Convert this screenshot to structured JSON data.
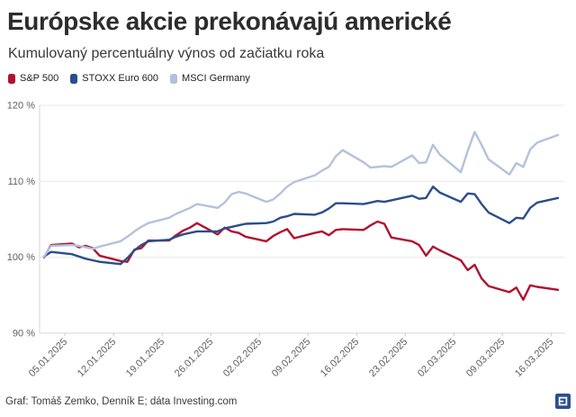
{
  "header": {
    "title": "Európske akcie prekonávajú americké",
    "subtitle": "Kumulovaný percentuálny výnos od začiatku roka"
  },
  "footer": {
    "credit": "Graf: Tomáš Zemko, Denník E; dáta Investing.com",
    "logo": {
      "name": "dennik-e-logo",
      "color": "#2d4e8e"
    }
  },
  "colors": {
    "grid": "#e9e9e9",
    "axis": "#d6d6d6",
    "tick": "#c9c9c9",
    "axis_text": "#5f5f5f"
  },
  "chart_data": {
    "type": "line",
    "title": "Európske akcie prekonávajú americké",
    "subtitle": "Kumulovaný percentuálny výnos od začiatku roka",
    "ylim": [
      90,
      120
    ],
    "y_ticks": [
      90,
      100,
      110,
      120
    ],
    "y_tick_labels": [
      "90 %",
      "100 %",
      "110 %",
      "120 %"
    ],
    "x_tick_labels": [
      "05.01.2025",
      "12.01.2025",
      "19.01.2025",
      "26.01.2025",
      "02.02.2025",
      "09.02.2025",
      "16.02.2025",
      "23.02.2025",
      "02.03.2025",
      "09.03.2025",
      "16.03.2025"
    ],
    "x_tick_offsets": [
      4,
      11,
      18,
      25,
      32,
      39,
      46,
      53,
      60,
      67,
      74
    ],
    "xlim_days": [
      0,
      76
    ],
    "grid": "on",
    "legend_position": "top-left",
    "dates": [
      "02.01.2025",
      "03.01.2025",
      "06.01.2025",
      "07.01.2025",
      "08.01.2025",
      "09.01.2025",
      "10.01.2025",
      "13.01.2025",
      "14.01.2025",
      "15.01.2025",
      "16.01.2025",
      "17.01.2025",
      "20.01.2025",
      "21.01.2025",
      "22.01.2025",
      "23.01.2025",
      "24.01.2025",
      "27.01.2025",
      "28.01.2025",
      "29.01.2025",
      "30.01.2025",
      "31.01.2025",
      "03.02.2025",
      "04.02.2025",
      "05.02.2025",
      "06.02.2025",
      "07.02.2025",
      "10.02.2025",
      "11.02.2025",
      "12.02.2025",
      "13.02.2025",
      "14.02.2025",
      "17.02.2025",
      "18.02.2025",
      "19.02.2025",
      "20.02.2025",
      "21.02.2025",
      "24.02.2025",
      "25.02.2025",
      "26.02.2025",
      "27.02.2025",
      "28.02.2025",
      "03.03.2025",
      "04.03.2025",
      "05.03.2025",
      "06.03.2025",
      "07.03.2025",
      "10.03.2025",
      "11.03.2025",
      "12.03.2025",
      "13.03.2025",
      "14.03.2025",
      "17.03.2025"
    ],
    "x_offsets": [
      1,
      2,
      5,
      6,
      7,
      8,
      9,
      12,
      13,
      14,
      15,
      16,
      19,
      20,
      21,
      22,
      23,
      26,
      27,
      28,
      29,
      30,
      33,
      34,
      35,
      36,
      37,
      40,
      41,
      42,
      43,
      44,
      47,
      48,
      49,
      50,
      51,
      54,
      55,
      56,
      57,
      58,
      61,
      62,
      63,
      64,
      65,
      68,
      69,
      70,
      71,
      72,
      75
    ],
    "series": [
      {
        "name": "S&P 500",
        "color": "#b01230",
        "values": [
          100.0,
          101.6,
          101.8,
          101.3,
          101.5,
          101.2,
          100.2,
          99.5,
          99.4,
          101.0,
          101.2,
          102.2,
          102.2,
          102.9,
          103.5,
          103.9,
          104.5,
          103.0,
          103.9,
          103.4,
          103.2,
          102.7,
          102.1,
          102.8,
          103.3,
          103.7,
          102.5,
          103.2,
          103.4,
          102.9,
          103.6,
          103.7,
          103.6,
          104.2,
          104.7,
          104.4,
          102.6,
          102.1,
          101.6,
          100.2,
          101.4,
          100.9,
          99.6,
          98.3,
          99.0,
          97.2,
          96.2,
          95.4,
          96.0,
          94.4,
          96.3,
          96.1,
          95.7
        ]
      },
      {
        "name": "STOXX Euro 600",
        "color": "#2a4e8a",
        "values": [
          100.1,
          100.7,
          100.4,
          100.1,
          99.8,
          99.6,
          99.4,
          99.1,
          99.9,
          100.9,
          101.6,
          102.1,
          102.3,
          102.7,
          103.0,
          103.2,
          103.4,
          103.4,
          103.8,
          104.0,
          104.2,
          104.4,
          104.5,
          104.7,
          105.2,
          105.4,
          105.7,
          105.6,
          105.9,
          106.4,
          107.1,
          107.1,
          107.0,
          107.2,
          107.4,
          107.3,
          107.5,
          108.1,
          107.7,
          107.8,
          109.3,
          108.5,
          107.3,
          108.4,
          108.3,
          107.0,
          105.9,
          104.5,
          105.2,
          105.1,
          106.5,
          107.2,
          107.8
        ]
      },
      {
        "name": "MSCI Germany",
        "color": "#b3c2db",
        "values": [
          100.1,
          101.5,
          101.6,
          101.5,
          101.3,
          101.1,
          101.4,
          102.1,
          102.7,
          103.4,
          104.0,
          104.5,
          105.2,
          105.7,
          106.1,
          106.5,
          107.0,
          106.5,
          107.2,
          108.3,
          108.6,
          108.4,
          107.3,
          107.6,
          108.4,
          109.3,
          109.9,
          110.8,
          111.4,
          111.9,
          113.3,
          114.1,
          112.5,
          111.8,
          111.9,
          112.0,
          111.9,
          113.4,
          112.4,
          112.5,
          114.8,
          113.5,
          111.2,
          114.0,
          116.5,
          114.8,
          112.9,
          110.9,
          112.4,
          111.9,
          114.2,
          115.1,
          116.1
        ]
      }
    ]
  }
}
